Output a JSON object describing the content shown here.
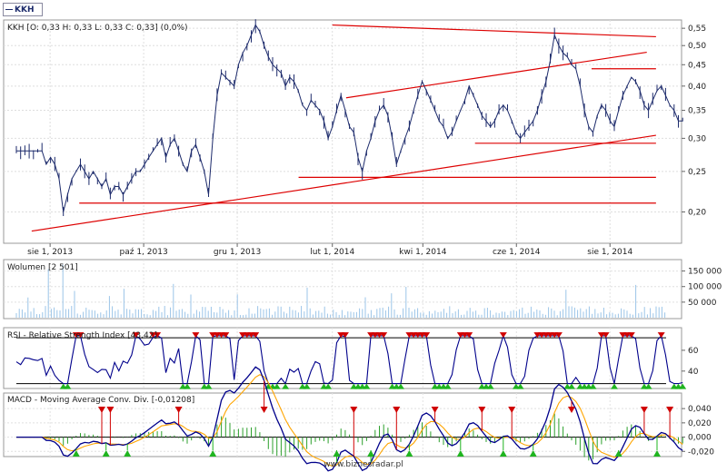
{
  "legend": {
    "symbol": "KKH"
  },
  "footer": "www.biznesradar.pl",
  "chart_data": [
    {
      "type": "line",
      "panel": "price",
      "title": "KKH [O: 0,33  H: 0,33  L: 0,33  C: 0,33] (0,0%)",
      "x_ticks": [
        "sie 1, 2013",
        "paź 1, 2013",
        "gru 1, 2013",
        "lut 1, 2014",
        "kwi 1, 2014",
        "cze 1, 2014",
        "sie 1, 2014"
      ],
      "y_ticks": [
        "0,55",
        "0,50",
        "0,45",
        "0,40",
        "0,35",
        "0,30",
        "0,25",
        "0,20"
      ],
      "ylim": [
        0.17,
        0.57
      ],
      "log_scale": true,
      "series_color": "#1c2a6b",
      "trendline_color": "#dd0000",
      "close": [
        0.28,
        0.28,
        0.28,
        0.28,
        0.28,
        0.28,
        0.28,
        0.26,
        0.27,
        0.26,
        0.24,
        0.2,
        0.22,
        0.24,
        0.25,
        0.26,
        0.25,
        0.24,
        0.25,
        0.24,
        0.23,
        0.24,
        0.22,
        0.23,
        0.23,
        0.22,
        0.23,
        0.24,
        0.25,
        0.25,
        0.26,
        0.27,
        0.28,
        0.29,
        0.3,
        0.27,
        0.29,
        0.3,
        0.28,
        0.26,
        0.25,
        0.28,
        0.29,
        0.27,
        0.25,
        0.22,
        0.3,
        0.38,
        0.43,
        0.42,
        0.41,
        0.4,
        0.45,
        0.48,
        0.5,
        0.53,
        0.56,
        0.54,
        0.5,
        0.47,
        0.45,
        0.44,
        0.43,
        0.4,
        0.42,
        0.41,
        0.39,
        0.36,
        0.35,
        0.37,
        0.36,
        0.35,
        0.33,
        0.3,
        0.32,
        0.35,
        0.38,
        0.35,
        0.32,
        0.31,
        0.27,
        0.25,
        0.28,
        0.3,
        0.33,
        0.35,
        0.36,
        0.34,
        0.3,
        0.26,
        0.28,
        0.3,
        0.32,
        0.35,
        0.38,
        0.41,
        0.39,
        0.37,
        0.35,
        0.33,
        0.32,
        0.3,
        0.31,
        0.33,
        0.35,
        0.37,
        0.4,
        0.38,
        0.36,
        0.34,
        0.33,
        0.32,
        0.33,
        0.35,
        0.36,
        0.35,
        0.33,
        0.31,
        0.3,
        0.31,
        0.32,
        0.33,
        0.35,
        0.38,
        0.41,
        0.46,
        0.53,
        0.5,
        0.48,
        0.47,
        0.45,
        0.44,
        0.4,
        0.35,
        0.32,
        0.31,
        0.34,
        0.36,
        0.35,
        0.33,
        0.32,
        0.35,
        0.38,
        0.4,
        0.42,
        0.41,
        0.39,
        0.36,
        0.35,
        0.37,
        0.39,
        0.4,
        0.38,
        0.36,
        0.35,
        0.33,
        0.33,
        0.33
      ],
      "trendlines": [
        {
          "from": [
            "2013-07-20",
            0.18
          ],
          "to": [
            "2014-08-31",
            0.305
          ]
        },
        {
          "from": [
            "2014-02-01",
            0.56
          ],
          "to": [
            "2014-08-31",
            0.525
          ]
        },
        {
          "from": [
            "2014-01-10",
            0.242
          ],
          "to": [
            "2014-08-31",
            0.242
          ]
        },
        {
          "from": [
            "2013-08-20",
            0.21
          ],
          "to": [
            "2014-08-31",
            0.21
          ]
        },
        {
          "from": [
            "2014-02-10",
            0.375
          ],
          "to": [
            "2014-08-25",
            0.482
          ]
        },
        {
          "from": [
            "2014-05-05",
            0.292
          ],
          "to": [
            "2014-08-31",
            0.292
          ]
        },
        {
          "from": [
            "2014-07-20",
            0.44
          ],
          "to": [
            "2014-08-31",
            0.44
          ]
        }
      ]
    },
    {
      "type": "bar",
      "panel": "volume",
      "title": "Wolumen [2 501]",
      "y_ticks": [
        "150 000",
        "100 000",
        "50 000"
      ],
      "ylim": [
        0,
        175000
      ],
      "series_color": "#9bc4e8"
    },
    {
      "type": "line",
      "panel": "rsi",
      "title": "RSI - Relative Strength Index [43,42]",
      "y_ticks": [
        "60",
        "40"
      ],
      "ylim": [
        25,
        80
      ],
      "reference_lines": [
        72,
        28
      ],
      "series_color": "#00008b"
    },
    {
      "type": "line",
      "panel": "macd",
      "title": "MACD - Moving Average Conv. Div. [-0,01208]",
      "y_ticks": [
        "0,040",
        "0,020",
        "0,000",
        "-0,020"
      ],
      "ylim": [
        -0.026,
        0.058
      ],
      "macd_color": "#00008b",
      "signal_color": "#ffa500",
      "histogram_color": "#2ca02c",
      "sell_marker_color": "#d00000",
      "buy_marker_color": "#1fb41f"
    }
  ]
}
